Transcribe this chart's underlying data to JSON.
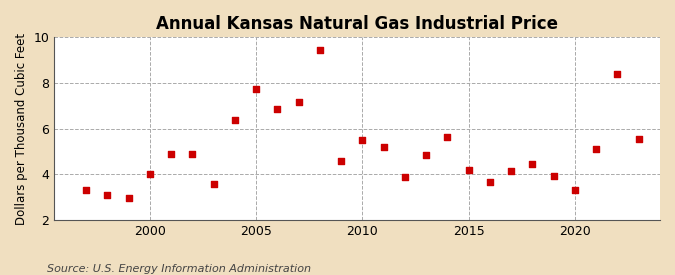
{
  "title": "Annual Kansas Natural Gas Industrial Price",
  "ylabel": "Dollars per Thousand Cubic Feet",
  "source": "Source: U.S. Energy Information Administration",
  "figure_bg": "#f0dfc0",
  "plot_bg": "#ffffff",
  "marker_color": "#cc0000",
  "years": [
    1997,
    1998,
    1999,
    2000,
    2001,
    2002,
    2003,
    2004,
    2005,
    2006,
    2007,
    2008,
    2009,
    2010,
    2011,
    2012,
    2013,
    2014,
    2015,
    2016,
    2017,
    2018,
    2019,
    2020,
    2021,
    2022,
    2023
  ],
  "values": [
    3.3,
    3.1,
    2.95,
    4.0,
    4.9,
    4.9,
    3.6,
    6.4,
    7.75,
    6.85,
    7.15,
    9.45,
    4.6,
    5.5,
    5.2,
    3.9,
    4.85,
    5.65,
    4.2,
    3.65,
    4.15,
    4.45,
    3.95,
    3.3,
    5.1,
    8.4,
    5.55
  ],
  "xlim": [
    1995.5,
    2024
  ],
  "ylim": [
    2,
    10
  ],
  "yticks": [
    2,
    4,
    6,
    8,
    10
  ],
  "xticks": [
    2000,
    2005,
    2010,
    2015,
    2020
  ],
  "grid_color": "#aaaaaa",
  "title_fontsize": 12,
  "label_fontsize": 8.5,
  "tick_fontsize": 9,
  "source_fontsize": 8
}
